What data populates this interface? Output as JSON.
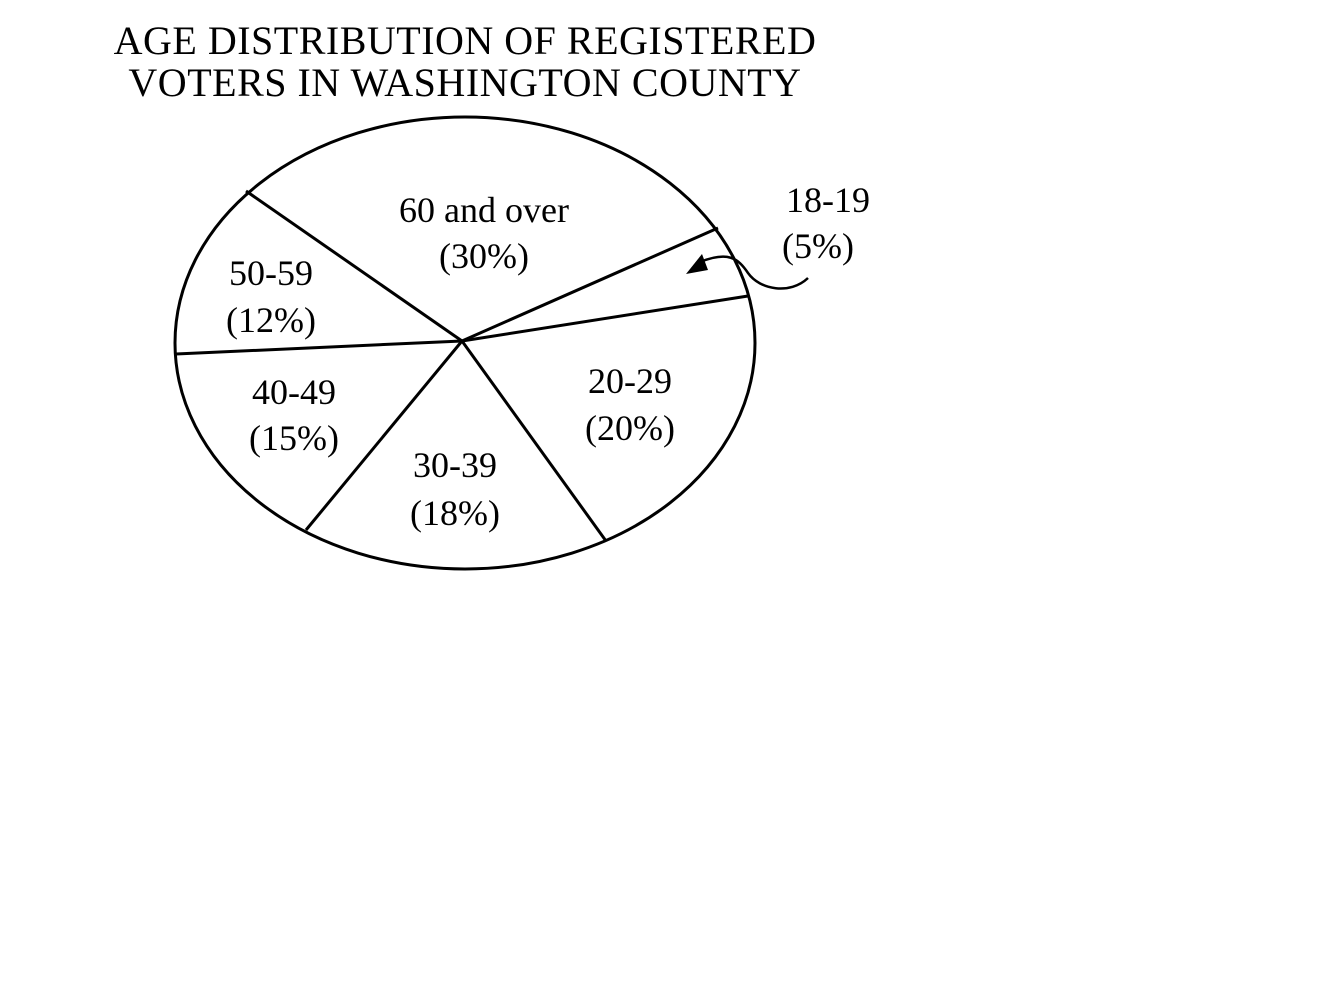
{
  "chart_data": {
    "type": "pie",
    "title_lines": [
      "AGE DISTRIBUTION OF REGISTERED",
      "VOTERS IN WASHINGTON COUNTY"
    ],
    "slices": [
      {
        "category": "18-19",
        "percent_label": "(5%)",
        "value": 5
      },
      {
        "category": "20-29",
        "percent_label": "(20%)",
        "value": 20
      },
      {
        "category": "30-39",
        "percent_label": "(18%)",
        "value": 18
      },
      {
        "category": "40-49",
        "percent_label": "(15%)",
        "value": 15
      },
      {
        "category": "50-59",
        "percent_label": "(12%)",
        "value": 12
      },
      {
        "category": "60 and over",
        "percent_label": "(30%)",
        "value": 30
      }
    ],
    "colors": {
      "line": "#000000",
      "fill": "#ffffff"
    }
  }
}
